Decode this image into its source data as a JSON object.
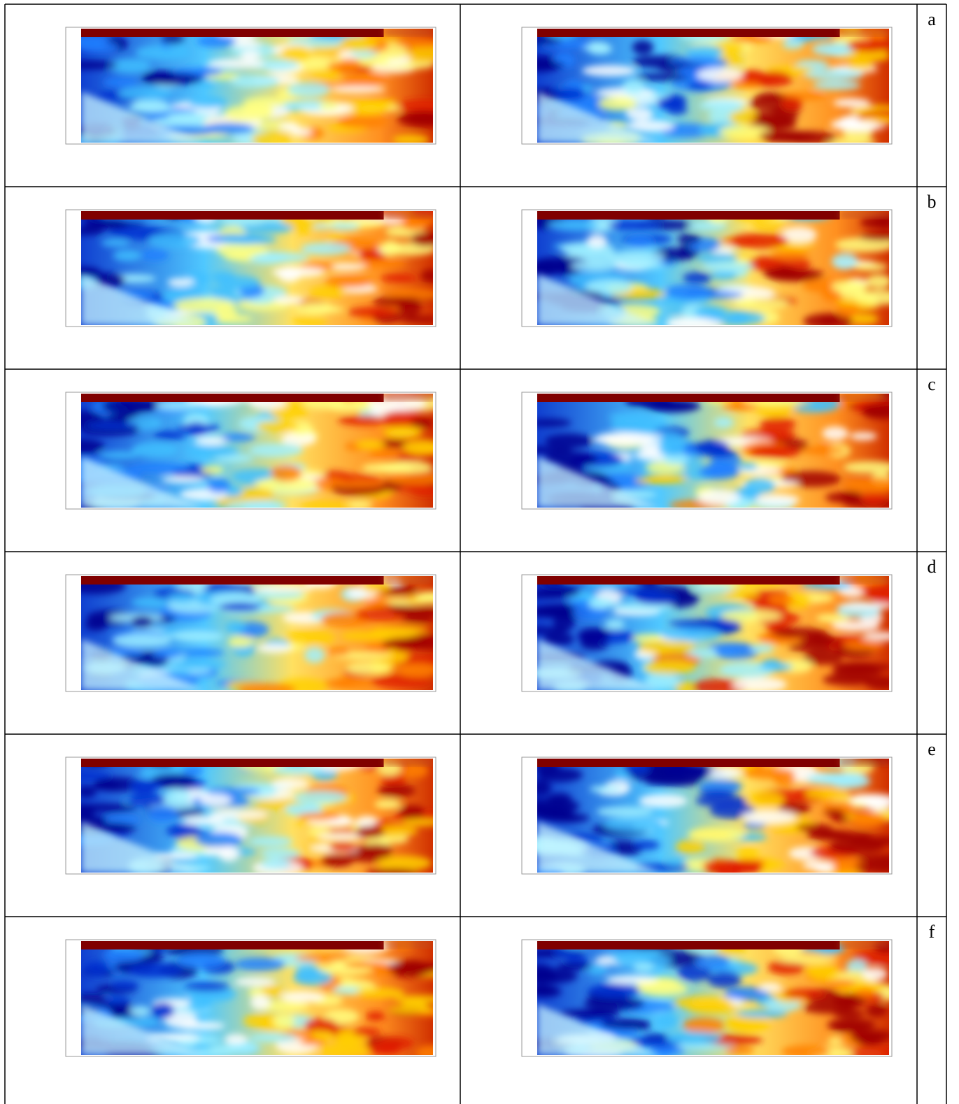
{
  "table": {
    "rows": [
      {
        "label": "a"
      },
      {
        "label": "b"
      },
      {
        "label": "c"
      },
      {
        "label": "d"
      },
      {
        "label": "e"
      },
      {
        "label": "f"
      }
    ]
  }
}
